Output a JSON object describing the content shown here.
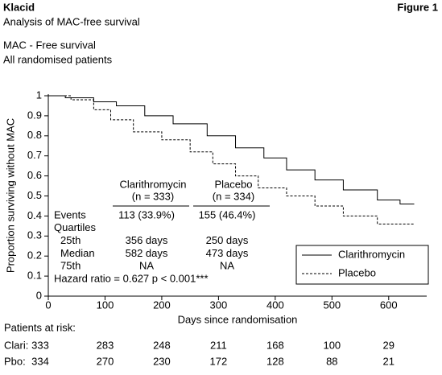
{
  "header": {
    "brand": "Klacid",
    "figure_label": "Figure 1",
    "title": "Analysis of MAC-free survival",
    "subtitle_lines": [
      "MAC - Free survival",
      "All randomised patients"
    ]
  },
  "chart_data": {
    "type": "line",
    "shape": "step",
    "xlabel": "Days since randomisation",
    "ylabel": "Proportion surviving without MAC",
    "xlim": [
      0,
      667
    ],
    "ylim": [
      0,
      1
    ],
    "xticks": [
      0,
      100,
      200,
      300,
      400,
      500,
      600
    ],
    "yticks": [
      0,
      0.1,
      0.2,
      0.3,
      0.4,
      0.5,
      0.6,
      0.7,
      0.8,
      0.9,
      1
    ],
    "legend": "lower right",
    "series": [
      {
        "name": "Clarithromycin",
        "color": "#000000",
        "dash": "solid",
        "x": [
          0,
          30,
          80,
          120,
          170,
          220,
          280,
          330,
          380,
          420,
          470,
          520,
          580,
          620,
          645
        ],
        "values": [
          1,
          0.99,
          0.97,
          0.95,
          0.9,
          0.86,
          0.8,
          0.74,
          0.69,
          0.63,
          0.58,
          0.53,
          0.48,
          0.46,
          0.46
        ]
      },
      {
        "name": "Placebo",
        "color": "#000000",
        "dash": "dashed",
        "x": [
          0,
          40,
          80,
          110,
          150,
          200,
          250,
          290,
          330,
          370,
          420,
          470,
          520,
          580,
          645
        ],
        "values": [
          1,
          0.98,
          0.93,
          0.88,
          0.82,
          0.78,
          0.72,
          0.66,
          0.6,
          0.54,
          0.5,
          0.45,
          0.4,
          0.36,
          0.36
        ]
      }
    ],
    "summary_table": {
      "columns": [
        {
          "name": "Clarithromycin",
          "n": "(n = 333)"
        },
        {
          "name": "Placebo",
          "n": "(n = 334)"
        }
      ],
      "rows": [
        {
          "label": "Events",
          "values": [
            "113 (33.9%)",
            "155 (46.4%)"
          ]
        },
        {
          "label": "Quartiles",
          "values": []
        },
        {
          "label": "25th",
          "values": [
            "356 days",
            "250 days"
          ]
        },
        {
          "label": "Median",
          "values": [
            "582 days",
            "473 days"
          ]
        },
        {
          "label": "75th",
          "values": [
            "NA",
            "NA"
          ]
        }
      ],
      "footer": "Hazard ratio = 0.627 p < 0.001***"
    },
    "risk_table": {
      "title": "Patients at risk:",
      "x": [
        0,
        100,
        200,
        300,
        400,
        500,
        600
      ],
      "rows": [
        {
          "label": "Clari:",
          "values": [
            333,
            283,
            248,
            211,
            168,
            100,
            29
          ]
        },
        {
          "label": "Pbo:",
          "values": [
            334,
            270,
            230,
            172,
            128,
            88,
            21
          ]
        }
      ]
    }
  }
}
